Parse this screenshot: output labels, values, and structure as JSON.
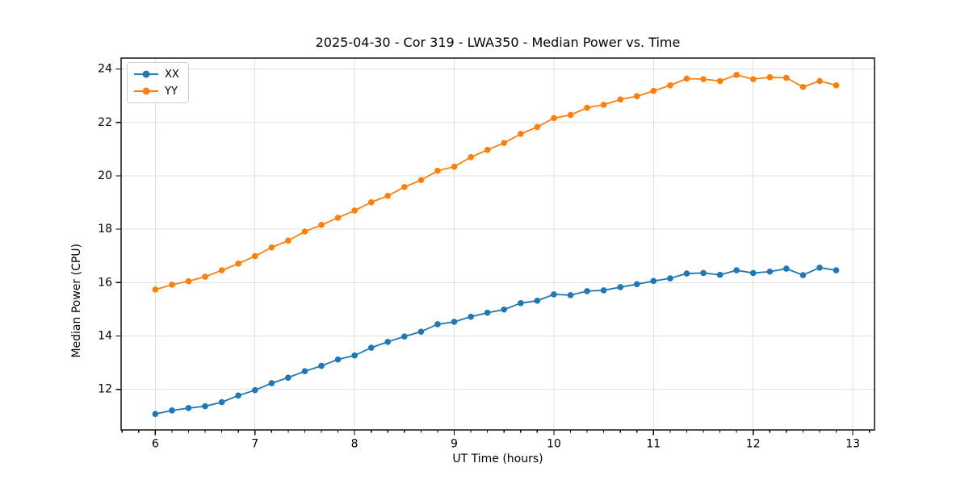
{
  "chart_data": {
    "type": "line",
    "title": "2025-04-30 - Cor 319 - LWA350 - Median Power vs. Time",
    "xlabel": "UT Time (hours)",
    "ylabel": "Median Power (CPU)",
    "xlim": [
      5.657,
      13.218
    ],
    "ylim": [
      10.48,
      24.41
    ],
    "x_ticks": [
      6,
      7,
      8,
      9,
      10,
      11,
      12,
      13
    ],
    "y_ticks": [
      12,
      14,
      16,
      18,
      20,
      22,
      24
    ],
    "x_minor_step": 0.1666667,
    "grid": true,
    "grid_color": "#e0e0e0",
    "axis_color": "#000000",
    "legend_position": "upper left",
    "x": [
      6.0,
      6.167,
      6.333,
      6.5,
      6.667,
      6.833,
      7.0,
      7.167,
      7.333,
      7.5,
      7.667,
      7.833,
      8.0,
      8.167,
      8.333,
      8.5,
      8.667,
      8.833,
      9.0,
      9.167,
      9.333,
      9.5,
      9.667,
      9.833,
      10.0,
      10.167,
      10.333,
      10.5,
      10.667,
      10.833,
      11.0,
      11.167,
      11.333,
      11.5,
      11.667,
      11.833,
      12.0,
      12.167,
      12.333,
      12.5,
      12.667,
      12.833
    ],
    "series": [
      {
        "name": "XX",
        "color": "#1f77b4",
        "marker": "circle",
        "values": [
          11.08,
          11.21,
          11.3,
          11.37,
          11.52,
          11.77,
          11.97,
          12.23,
          12.44,
          12.68,
          12.88,
          13.12,
          13.27,
          13.56,
          13.78,
          13.98,
          14.16,
          14.44,
          14.53,
          14.72,
          14.87,
          14.99,
          15.23,
          15.32,
          15.56,
          15.53,
          15.68,
          15.71,
          15.83,
          15.94,
          16.06,
          16.16,
          16.34,
          16.36,
          16.29,
          16.46,
          16.36,
          16.41,
          16.52,
          16.28,
          16.56,
          16.46
        ]
      },
      {
        "name": "YY",
        "color": "#ff7f0e",
        "marker": "circle",
        "values": [
          15.74,
          15.92,
          16.05,
          16.22,
          16.46,
          16.71,
          16.99,
          17.32,
          17.57,
          17.91,
          18.16,
          18.43,
          18.7,
          19.01,
          19.25,
          19.58,
          19.84,
          20.19,
          20.34,
          20.7,
          20.97,
          21.23,
          21.57,
          21.83,
          22.16,
          22.28,
          22.55,
          22.66,
          22.86,
          22.98,
          23.18,
          23.39,
          23.64,
          23.62,
          23.55,
          23.78,
          23.62,
          23.69,
          23.67,
          23.33,
          23.55,
          23.39
        ]
      }
    ]
  }
}
